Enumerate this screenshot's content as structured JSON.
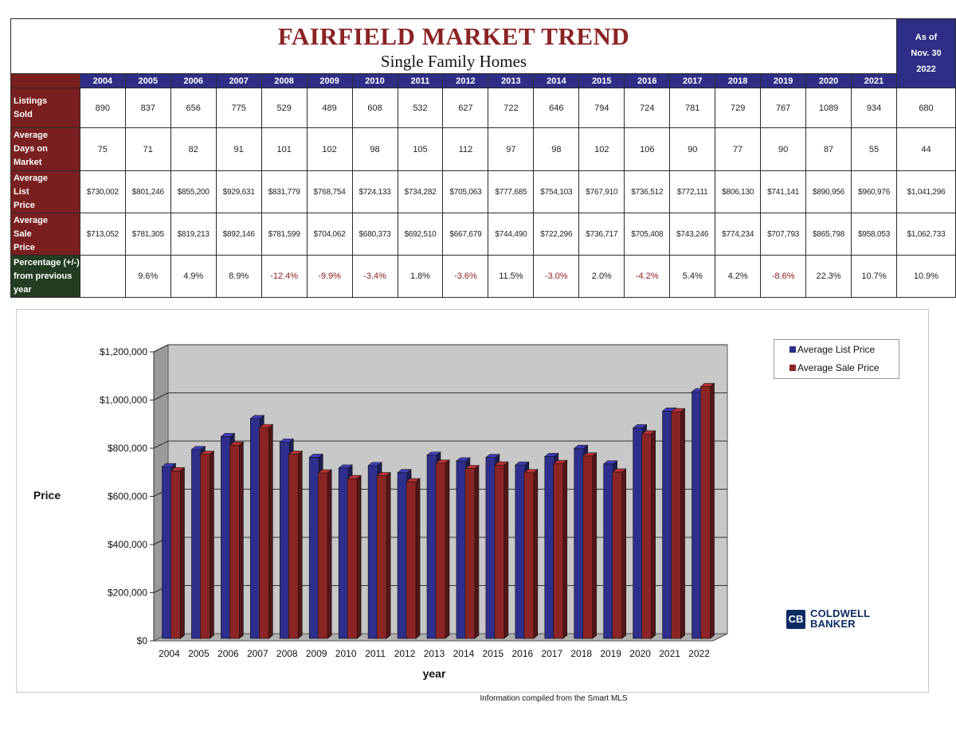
{
  "header": {
    "title": "FAIRFIELD MARKET TREND",
    "subtitle": "Single Family Homes",
    "asof_line1": "As of",
    "asof_line2": "Nov. 30",
    "asof_year": "2022"
  },
  "table": {
    "years": [
      "2004",
      "2005",
      "2006",
      "2007",
      "2008",
      "2009",
      "2010",
      "2011",
      "2012",
      "2013",
      "2014",
      "2015",
      "2016",
      "2017",
      "2018",
      "2019",
      "2020",
      "2021"
    ],
    "rows": [
      {
        "label_lines": [
          "Listings",
          "Sold"
        ],
        "values": [
          "890",
          "837",
          "656",
          "775",
          "529",
          "489",
          "608",
          "532",
          "627",
          "722",
          "646",
          "794",
          "724",
          "781",
          "729",
          "767",
          "1089",
          "934"
        ],
        "current": "680"
      },
      {
        "label_lines": [
          "Average",
          "Days on",
          "Market"
        ],
        "values": [
          "75",
          "71",
          "82",
          "91",
          "101",
          "102",
          "98",
          "105",
          "112",
          "97",
          "98",
          "102",
          "106",
          "90",
          "77",
          "90",
          "87",
          "55"
        ],
        "current": "44"
      },
      {
        "label_lines": [
          "Average",
          "List",
          "Price"
        ],
        "values": [
          "$730,002",
          "$801,246",
          "$855,200",
          "$929,631",
          "$831,779",
          "$768,754",
          "$724,133",
          "$734,282",
          "$705,063",
          "$777,685",
          "$754,103",
          "$767,910",
          "$736,512",
          "$772,111",
          "$806,130",
          "$741,141",
          "$890,956",
          "$960,976"
        ],
        "current": "$1,041,296"
      },
      {
        "label_lines": [
          "Average",
          "Sale",
          "Price"
        ],
        "values": [
          "$713,052",
          "$781,305",
          "$819,213",
          "$892,146",
          "$781,599",
          "$704,062",
          "$680,373",
          "$692,510",
          "$667,679",
          "$744,490",
          "$722,296",
          "$736,717",
          "$705,408",
          "$743,246",
          "$774,234",
          "$707,793",
          "$865,798",
          "$958,053"
        ],
        "current": "$1,062,733"
      },
      {
        "label_lines": [
          "Percentage (+/-)",
          "from previous",
          "year"
        ],
        "values": [
          "",
          "9.6%",
          "4.9%",
          "8.9%",
          "-12.4%",
          "-9.9%",
          "-3.4%",
          "1.8%",
          "-3.6%",
          "11.5%",
          "-3.0%",
          "2.0%",
          "-4.2%",
          "5.4%",
          "4.2%",
          "-8.6%",
          "22.3%",
          "10.7%"
        ],
        "current": "10.9%"
      }
    ]
  },
  "chart_data": {
    "type": "bar",
    "title": "",
    "xlabel": "year",
    "ylabel": "Price",
    "ylim": [
      0,
      1200000
    ],
    "yticks": [
      0,
      200000,
      400000,
      600000,
      800000,
      1000000,
      1200000
    ],
    "ytick_labels": [
      "$0",
      "$200,000",
      "$400,000",
      "$600,000",
      "$800,000",
      "$1,000,000",
      "$1,200,000"
    ],
    "grid": true,
    "legend_position": "top-right",
    "categories": [
      "2004",
      "2005",
      "2006",
      "2007",
      "2008",
      "2009",
      "2010",
      "2011",
      "2012",
      "2013",
      "2014",
      "2015",
      "2016",
      "2017",
      "2018",
      "2019",
      "2020",
      "2021",
      "2022"
    ],
    "series": [
      {
        "name": "Average List Price",
        "color": "#2e2e8c",
        "values": [
          730002,
          801246,
          855200,
          929631,
          831779,
          768754,
          724133,
          734282,
          705063,
          777685,
          754103,
          767910,
          736512,
          772111,
          806130,
          741141,
          890956,
          960976,
          1041296
        ]
      },
      {
        "name": "Average Sale Price",
        "color": "#8b2525",
        "values": [
          713052,
          781305,
          819213,
          892146,
          781599,
          704062,
          680373,
          692510,
          667679,
          744490,
          722296,
          736717,
          705408,
          743246,
          774234,
          707793,
          865798,
          958053,
          1062733
        ]
      }
    ]
  },
  "logo": {
    "line1": "COLDWELL",
    "line2": "BANKER",
    "mark": "CB"
  },
  "footnote": "Information compiled from the Smart MLS"
}
